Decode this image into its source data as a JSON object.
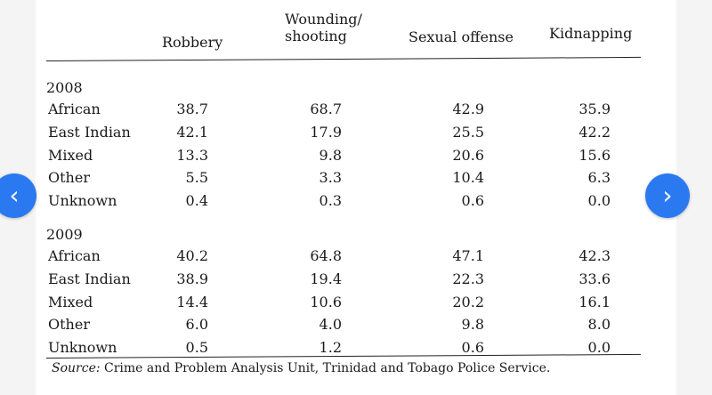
{
  "table": {
    "columns": [
      "Robbery",
      "Wounding/\nshooting",
      "Sexual offense",
      "Kidnapping"
    ],
    "sections": [
      {
        "year": "2008",
        "rows": [
          {
            "label": "African",
            "values": [
              "38.7",
              "68.7",
              "42.9",
              "35.9"
            ]
          },
          {
            "label": "East Indian",
            "values": [
              "42.1",
              "17.9",
              "25.5",
              "42.2"
            ]
          },
          {
            "label": "Mixed",
            "values": [
              "13.3",
              "9.8",
              "20.6",
              "15.6"
            ]
          },
          {
            "label": "Other",
            "values": [
              "5.5",
              "3.3",
              "10.4",
              "6.3"
            ]
          },
          {
            "label": "Unknown",
            "values": [
              "0.4",
              "0.3",
              "0.6",
              "0.0"
            ]
          }
        ]
      },
      {
        "year": "2009",
        "rows": [
          {
            "label": "African",
            "values": [
              "40.2",
              "64.8",
              "47.1",
              "42.3"
            ]
          },
          {
            "label": "East Indian",
            "values": [
              "38.9",
              "19.4",
              "22.3",
              "33.6"
            ]
          },
          {
            "label": "Mixed",
            "values": [
              "14.4",
              "10.6",
              "20.2",
              "16.1"
            ]
          },
          {
            "label": "Other",
            "values": [
              "6.0",
              "4.0",
              "9.8",
              "8.0"
            ]
          },
          {
            "label": "Unknown",
            "values": [
              "0.5",
              "1.2",
              "0.6",
              "0.0"
            ]
          }
        ]
      }
    ],
    "source_label": "Source:",
    "source_text": " Crime and Problem Analysis Unit, Trinidad and Tobago Police Service."
  },
  "nav": {
    "prev_glyph": "‹",
    "next_glyph": "›",
    "color": "#2b79f0"
  }
}
